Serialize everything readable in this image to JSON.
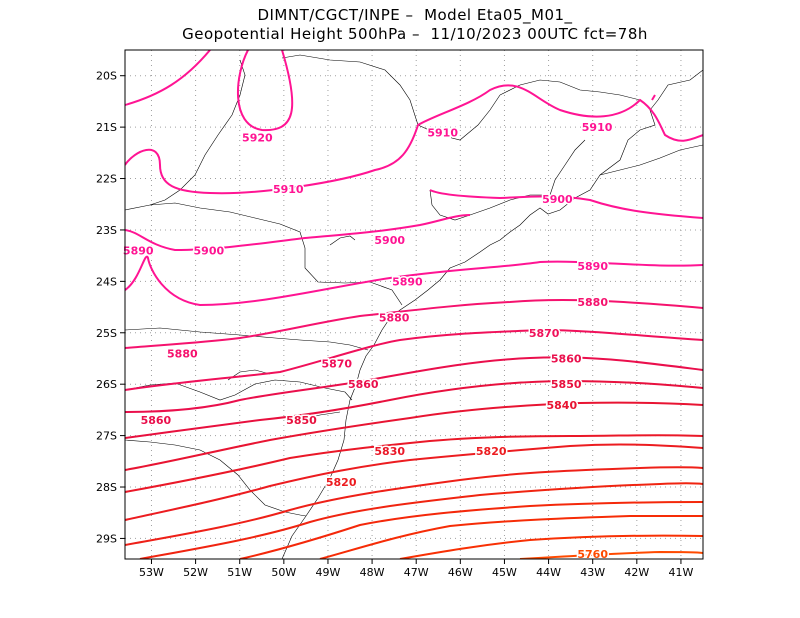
{
  "header": {
    "title_line1": "DIMNT/CGCT/INPE –  Model Eta05_M01_",
    "title_line2": "Geopotential Height 500hPa –  11/10/2023 00UTC fct=78h"
  },
  "map": {
    "lon_range": [
      -53.6,
      -40.5
    ],
    "lat_range": [
      -29.4,
      -19.5
    ],
    "lon_ticks": [
      "53W",
      "52W",
      "51W",
      "50W",
      "49W",
      "48W",
      "47W",
      "46W",
      "45W",
      "44W",
      "43W",
      "42W",
      "41W"
    ],
    "lat_ticks": [
      "20S",
      "21S",
      "22S",
      "23S",
      "24S",
      "25S",
      "26S",
      "27S",
      "28S",
      "29S"
    ],
    "grid": true,
    "colors": {
      "high": "#ff1493",
      "mid": "#e8104a",
      "low": "#ff2a00",
      "coast": "#000000",
      "grid": "#a0a0a0"
    }
  },
  "contour_labels": [
    {
      "text": "5920",
      "lon": -50.6,
      "lat": -21.2,
      "color": "#ff1493"
    },
    {
      "text": "5910",
      "lon": -46.4,
      "lat": -21.1,
      "color": "#ff1493"
    },
    {
      "text": "5910",
      "lon": -42.9,
      "lat": -21.0,
      "color": "#ff1493"
    },
    {
      "text": "5910",
      "lon": -49.9,
      "lat": -22.2,
      "color": "#ff1493"
    },
    {
      "text": "5900",
      "lon": -43.8,
      "lat": -22.4,
      "color": "#ff1493"
    },
    {
      "text": "5900",
      "lon": -51.7,
      "lat": -23.4,
      "color": "#ff1493"
    },
    {
      "text": "5900",
      "lon": -47.6,
      "lat": -23.2,
      "color": "#ff1493"
    },
    {
      "text": "5890",
      "lon": -53.3,
      "lat": -23.4,
      "color": "#ff1493"
    },
    {
      "text": "5890",
      "lon": -47.2,
      "lat": -24.0,
      "color": "#ff1493"
    },
    {
      "text": "5890",
      "lon": -43.0,
      "lat": -23.7,
      "color": "#ff1493"
    },
    {
      "text": "5880",
      "lon": -47.5,
      "lat": -24.7,
      "color": "#f5126e"
    },
    {
      "text": "5880",
      "lon": -43.0,
      "lat": -24.4,
      "color": "#f5126e"
    },
    {
      "text": "5880",
      "lon": -52.3,
      "lat": -25.4,
      "color": "#f5126e"
    },
    {
      "text": "5870",
      "lon": -48.8,
      "lat": -25.6,
      "color": "#f0105a"
    },
    {
      "text": "5870",
      "lon": -44.1,
      "lat": -25.0,
      "color": "#f0105a"
    },
    {
      "text": "5860",
      "lon": -48.2,
      "lat": -26.0,
      "color": "#ea0f4c"
    },
    {
      "text": "5860",
      "lon": -43.6,
      "lat": -25.5,
      "color": "#ea0f4c"
    },
    {
      "text": "5860",
      "lon": -52.9,
      "lat": -26.7,
      "color": "#ea0f4c"
    },
    {
      "text": "5850",
      "lon": -43.6,
      "lat": -26.0,
      "color": "#e8103e"
    },
    {
      "text": "5850",
      "lon": -49.6,
      "lat": -26.7,
      "color": "#e8103e"
    },
    {
      "text": "5840",
      "lon": -43.7,
      "lat": -26.4,
      "color": "#e81432"
    },
    {
      "text": "5830",
      "lon": -47.6,
      "lat": -27.3,
      "color": "#ea1828"
    },
    {
      "text": "5820",
      "lon": -45.3,
      "lat": -27.3,
      "color": "#ec1c20"
    },
    {
      "text": "5820",
      "lon": -48.7,
      "lat": -27.9,
      "color": "#ec1c20"
    },
    {
      "text": "5760",
      "lon": -43.0,
      "lat": -29.3,
      "color": "#ff4a00"
    }
  ]
}
